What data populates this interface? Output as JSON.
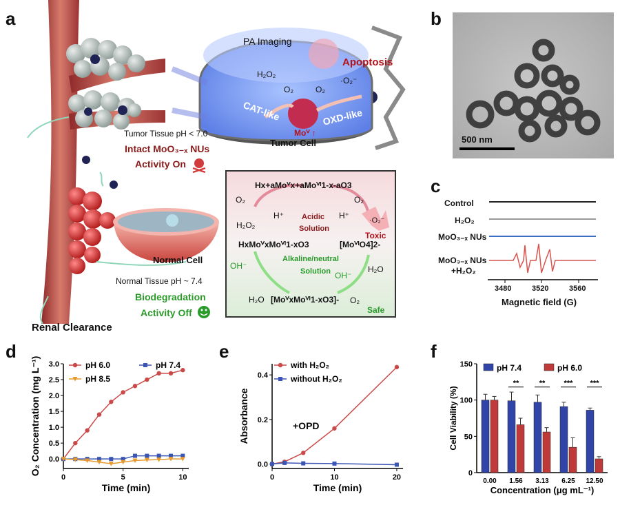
{
  "panels": {
    "a": "a",
    "b": "b",
    "c": "c",
    "d": "d",
    "e": "e",
    "f": "f"
  },
  "panel_a": {
    "pa_imaging": "PA Imaging",
    "apoptosis": "Apoptosis",
    "h2o2": "H₂O₂",
    "o2_1": "O₂",
    "o2_2": "O₂",
    "o2_radical": "·O₂⁻",
    "cat_like": "CAT-like",
    "oxd_like": "OXD-like",
    "mov": "Moⱽ ↑",
    "tumor_cell": "Tumor Cell",
    "tumor_ph": "Tumor Tissue pH < 7.0",
    "intact": "Intact MoO₃₋ₓ NUs",
    "activity_on": "Activity On",
    "normal_cell": "Normal Cell",
    "normal_ph": "Normal Tissue pH ~ 7.4",
    "biodeg": "Biodegradation",
    "activity_off": "Activity Off",
    "renal": "Renal Clearance",
    "scheme": {
      "top_formula": "Hx+aMoⱽx+aMoⱽᴵ1-x-aO3",
      "left_formula": "HxMoⱽxMoⱽᴵ1-xO3",
      "right_formula": "[MoⱽᴵO4]2-",
      "bottom_formula": "[MoⱽxMoⱽᴵ1-xO3]-",
      "acidic": "Acidic",
      "solution1": "Solution",
      "alkaline": "Alkaline/neutral",
      "solution2": "Solution",
      "o2_tl": "O₂",
      "h2o2_l": "H₂O₂",
      "h_plus_l": "H⁺",
      "h_plus_r": "H⁺",
      "o2_tr": "O₂",
      "o2_radical": "·O₂⁻",
      "toxic": "Toxic",
      "oh_l": "OH⁻",
      "h2o_l": "H₂O",
      "oh_r": "OH⁻",
      "h2o_r": "H₂O",
      "o2_br": "O₂",
      "safe": "Safe"
    }
  },
  "panel_b": {
    "scale_bar": "500 nm"
  },
  "panel_c": {
    "labels": [
      "Control",
      "H₂O₂",
      "MoO₃₋ₓ NUs",
      "MoO₃₋ₓ NUs",
      "+H₂O₂"
    ],
    "ticks": [
      "3480",
      "3520",
      "3560"
    ],
    "xlabel": "Magnetic field (G)",
    "colors": [
      "#222222",
      "#9a9a9a",
      "#3a6fc4",
      "#d9534f"
    ]
  },
  "chart_data": [
    {
      "id": "d",
      "type": "line",
      "ylabel": "O₂ Concentration (mg L⁻¹)",
      "xlabel": "Time (min)",
      "xlim": [
        0,
        10.5
      ],
      "ylim": [
        -0.3,
        3.0
      ],
      "xticks": [
        "0",
        "5",
        "10"
      ],
      "yticks": [
        "0.0",
        "0.5",
        "1.0",
        "1.5",
        "2.0",
        "2.5",
        "3.0"
      ],
      "series": [
        {
          "name": "pH 6.0",
          "color": "#c94a48",
          "marker": "circle",
          "x": [
            0,
            1,
            2,
            3,
            4,
            5,
            6,
            7,
            8,
            9,
            10
          ],
          "y": [
            0,
            0.5,
            0.9,
            1.4,
            1.8,
            2.1,
            2.3,
            2.5,
            2.7,
            2.7,
            2.8
          ]
        },
        {
          "name": "pH 7.4",
          "color": "#3b55b3",
          "marker": "square",
          "x": [
            0,
            1,
            2,
            3,
            4,
            5,
            6,
            7,
            8,
            9,
            10
          ],
          "y": [
            0,
            0,
            0,
            0,
            0,
            0,
            0.1,
            0.1,
            0.1,
            0.1,
            0.1
          ]
        },
        {
          "name": "pH 8.5",
          "color": "#e69b2f",
          "marker": "triangle",
          "x": [
            0,
            1,
            2,
            3,
            4,
            5,
            6,
            7,
            8,
            9,
            10
          ],
          "y": [
            0,
            -0.02,
            -0.05,
            -0.1,
            -0.15,
            -0.1,
            -0.05,
            -0.03,
            -0.02,
            0,
            0
          ]
        }
      ]
    },
    {
      "id": "e",
      "type": "line",
      "ylabel": "Absorbance",
      "xlabel": "Time (min)",
      "annotation": "+OPD",
      "xlim": [
        0,
        21
      ],
      "ylim": [
        -0.02,
        0.45
      ],
      "xticks": [
        "0",
        "10",
        "20"
      ],
      "yticks": [
        "0.0",
        "0.2",
        "0.4"
      ],
      "series": [
        {
          "name": "with H₂O₂",
          "color": "#c94a48",
          "marker": "circle",
          "x": [
            0,
            2,
            5,
            10,
            20
          ],
          "y": [
            0,
            0.01,
            0.05,
            0.16,
            0.435
          ]
        },
        {
          "name": "without H₂O₂",
          "color": "#3b55b3",
          "marker": "square",
          "x": [
            0,
            2,
            5,
            10,
            20
          ],
          "y": [
            0,
            0.005,
            0.003,
            0.002,
            -0.003
          ]
        }
      ]
    },
    {
      "id": "f",
      "type": "bar",
      "ylabel": "Cell Viability (%)",
      "xlabel": "Concentration (μg mL⁻¹)",
      "categories": [
        "0.00",
        "1.56",
        "3.13",
        "6.25",
        "12.50"
      ],
      "ylim": [
        0,
        150
      ],
      "yticks": [
        "0",
        "50",
        "100",
        "150"
      ],
      "series": [
        {
          "name": "pH 7.4",
          "color": "#3144a8",
          "values": [
            100,
            99,
            97,
            91,
            86
          ],
          "errors": [
            8,
            12,
            10,
            6,
            3
          ]
        },
        {
          "name": "pH 6.0",
          "color": "#c03a3a",
          "values": [
            100,
            66,
            56,
            35,
            19
          ],
          "errors": [
            5,
            9,
            6,
            13,
            3
          ]
        }
      ],
      "significance": [
        "",
        "**",
        "**",
        "***",
        "***"
      ]
    }
  ]
}
